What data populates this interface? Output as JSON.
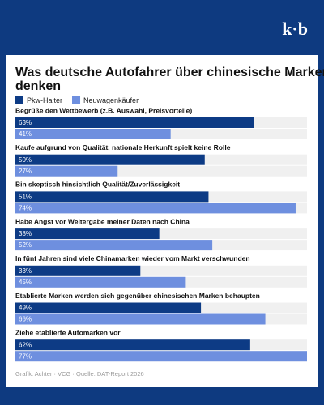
{
  "logo": "k·b",
  "chart_data": {
    "type": "bar",
    "orientation": "horizontal",
    "title": "Was deutsche Autofahrer über chinesische Marken denken",
    "categories": [
      "Begrüße den Wettbewerb (z.B. Auswahl, Preisvorteile)",
      "Kaufe aufgrund von Qualität, nationale Herkunft spielt keine Rolle",
      "Bin skeptisch hinsichtlich Qualität/Zuverlässigkeit",
      "Habe Angst vor Weitergabe meiner Daten nach China",
      "In fünf Jahren sind viele Chinamarken wieder vom Markt verschwunden",
      "Etablierte Marken werden sich gegenüber chinesischen Marken behaupten",
      "Ziehe etablierte Automarken vor"
    ],
    "series": [
      {
        "name": "Pkw-Halter",
        "color": "#0d3b85",
        "values": [
          63,
          50,
          51,
          38,
          33,
          49,
          62
        ],
        "value_labels": [
          "63%",
          "50%",
          "51%",
          "38%",
          "33%",
          "49%",
          "62%"
        ]
      },
      {
        "name": "Neuwagenkäufer",
        "color": "#6e8fdf",
        "values": [
          41,
          27,
          74,
          52,
          45,
          66,
          77
        ],
        "value_labels": [
          "41%",
          "27%",
          "74%",
          "52%",
          "45%",
          "66%",
          "77%"
        ]
      }
    ],
    "xlim": [
      0,
      77
    ],
    "source": "Grafik: Achter · VCG · Quelle: DAT-Report 2026"
  }
}
